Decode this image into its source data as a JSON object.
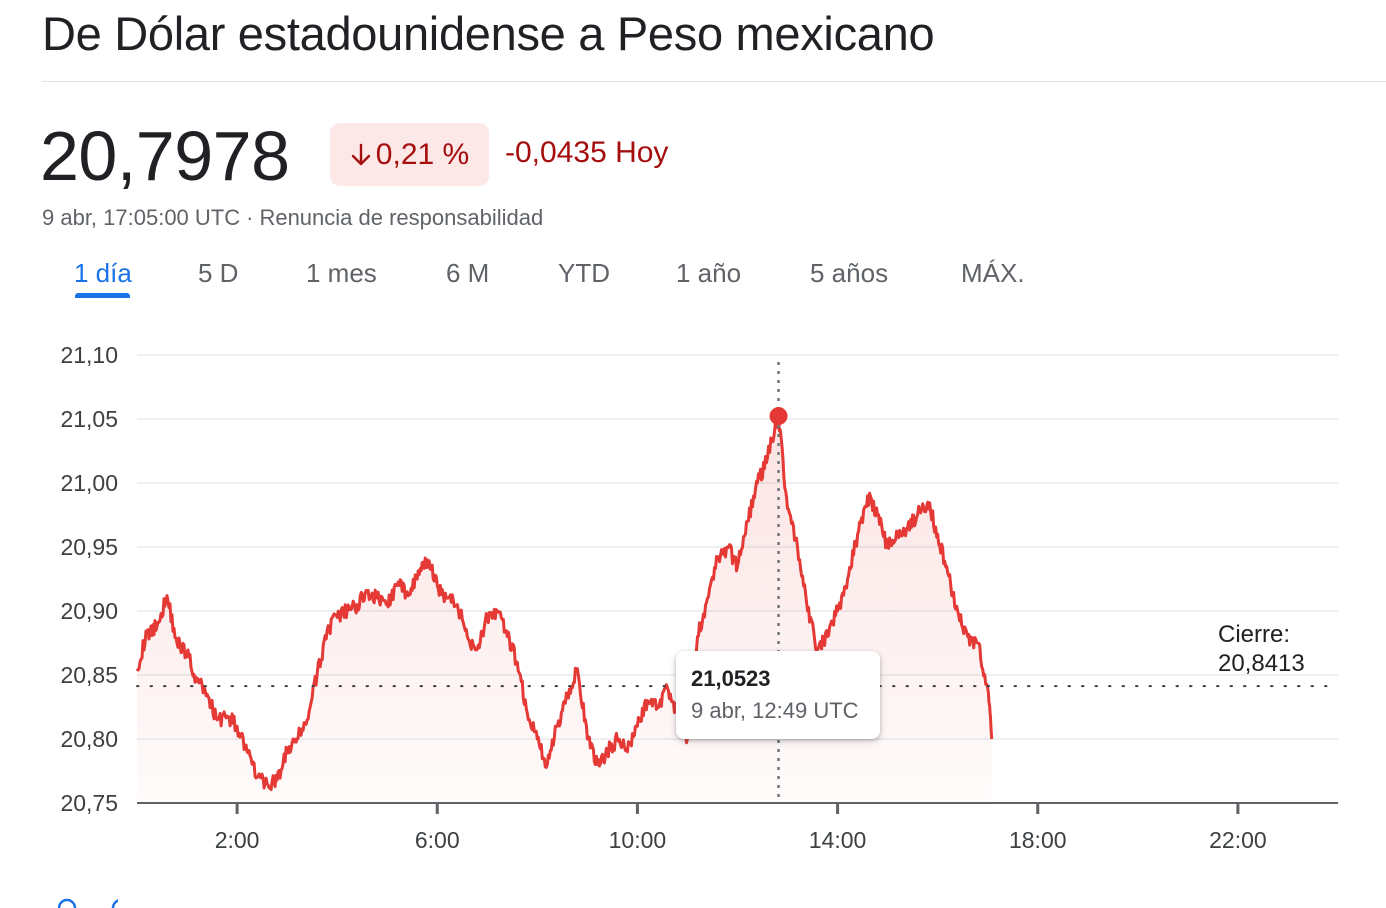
{
  "header": {
    "title": "De Dólar estadounidense a Peso mexicano"
  },
  "quote": {
    "price": "20,7978",
    "change_percent": "0,21 %",
    "change_absolute": "-0,0435 Hoy",
    "direction_icon": "arrow-down-icon",
    "timestamp": "9 abr, 17:05:00 UTC",
    "separator": "·",
    "disclaimer": "Renuncia de responsabilidad"
  },
  "tabs": [
    {
      "label": "1 día",
      "active": true
    },
    {
      "label": "5 D",
      "active": false
    },
    {
      "label": "1 mes",
      "active": false
    },
    {
      "label": "6 M",
      "active": false
    },
    {
      "label": "YTD",
      "active": false
    },
    {
      "label": "1 año",
      "active": false
    },
    {
      "label": "5 años",
      "active": false
    },
    {
      "label": "MÁX.",
      "active": false
    }
  ],
  "tooltip": {
    "value": "21,0523",
    "time": "9 abr, 12:49 UTC"
  },
  "close_marker": {
    "label": "Cierre:",
    "value": "20,8413"
  },
  "colors": {
    "line": "#e53935",
    "negative_text": "#a50e0e",
    "negative_badge": "#fce8e6",
    "active_tab": "#1a73e8",
    "grid": "#e8eaed"
  },
  "chart_data": {
    "type": "line",
    "x_unit": "hours",
    "xlim": [
      0,
      24
    ],
    "ylim": [
      20.75,
      21.1
    ],
    "y_ticks": [
      "21,10",
      "21,05",
      "21,00",
      "20,95",
      "20,90",
      "20,85",
      "20,80",
      "20,75"
    ],
    "y_tick_values": [
      21.1,
      21.05,
      21.0,
      20.95,
      20.9,
      20.85,
      20.8,
      20.75
    ],
    "x_ticks": [
      "2:00",
      "6:00",
      "10:00",
      "14:00",
      "18:00",
      "22:00"
    ],
    "x_tick_values": [
      2,
      6,
      10,
      14,
      18,
      22
    ],
    "grid": true,
    "previous_close": 20.8413,
    "highlight": {
      "x": 12.82,
      "y": 21.0523
    },
    "series": [
      {
        "x": [
          0,
          0.2,
          0.4,
          0.6,
          0.8,
          1.0,
          1.2,
          1.4,
          1.6,
          1.8,
          2.0,
          2.2,
          2.4,
          2.6,
          2.8,
          3.0,
          3.2,
          3.4,
          3.6,
          3.8,
          4.0,
          4.2,
          4.4,
          4.6,
          4.8,
          5.0,
          5.2,
          5.4,
          5.6,
          5.8,
          6.0,
          6.2,
          6.4,
          6.6,
          6.8,
          7.0,
          7.2,
          7.4,
          7.6,
          7.8,
          8.0,
          8.2,
          8.4,
          8.6,
          8.8,
          9.0,
          9.2,
          9.4,
          9.6,
          9.8,
          10.0,
          10.2,
          10.4,
          10.6,
          10.8,
          11.0,
          11.2,
          11.4,
          11.6,
          11.8,
          12.0,
          12.2,
          12.4,
          12.6,
          12.82,
          13.0,
          13.2,
          13.4,
          13.6,
          13.8,
          14.0,
          14.2,
          14.4,
          14.6,
          14.8,
          15.0,
          15.2,
          15.4,
          15.6,
          15.8,
          16.0,
          16.2,
          16.4,
          16.6,
          16.8,
          17.0,
          17.08
        ],
        "values": [
          20.855,
          20.882,
          20.888,
          20.912,
          20.875,
          20.868,
          20.845,
          20.835,
          20.815,
          20.818,
          20.81,
          20.79,
          20.77,
          20.765,
          20.768,
          20.79,
          20.8,
          20.815,
          20.85,
          20.885,
          20.895,
          20.9,
          20.905,
          20.915,
          20.91,
          20.905,
          20.92,
          20.915,
          20.925,
          20.94,
          20.92,
          20.91,
          20.905,
          20.88,
          20.87,
          20.895,
          20.9,
          20.88,
          20.86,
          20.82,
          20.8,
          20.78,
          20.81,
          20.835,
          20.855,
          20.8,
          20.78,
          20.79,
          20.8,
          20.79,
          20.81,
          20.83,
          20.825,
          20.84,
          20.82,
          20.8,
          20.88,
          20.91,
          20.94,
          20.95,
          20.935,
          20.97,
          21.0,
          21.02,
          21.0523,
          20.98,
          20.95,
          20.9,
          20.87,
          20.88,
          20.9,
          20.925,
          20.96,
          20.99,
          20.975,
          20.95,
          20.96,
          20.965,
          20.975,
          20.985,
          20.96,
          20.93,
          20.9,
          20.88,
          20.875,
          20.84,
          20.8
        ]
      }
    ]
  }
}
